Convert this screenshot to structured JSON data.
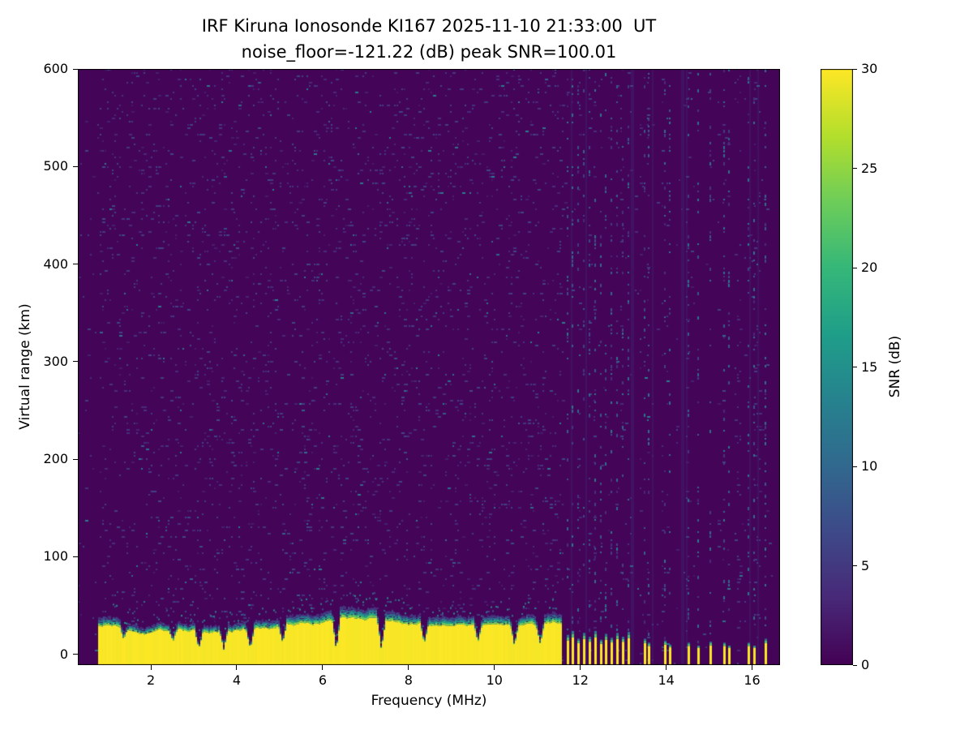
{
  "title": {
    "line1": "IRF Kiruna Ionosonde KI167 2025-11-10 21:33:00  UT",
    "line2": "noise_floor=-121.22 (dB) peak SNR=100.01"
  },
  "chart_data": {
    "type": "heatmap",
    "title": "IRF Kiruna Ionosonde KI167 2025-11-10 21:33:00  UT",
    "subtitle": "noise_floor=-121.22 (dB) peak SNR=100.01",
    "station": "IRF Kiruna Ionosonde KI167",
    "timestamp_ut": "2025-11-10 21:33:00",
    "noise_floor_db": -121.22,
    "peak_snr_db": 100.01,
    "xlabel": "Frequency (MHz)",
    "ylabel": "Virtual range (km)",
    "x_range_mhz": [
      0.3,
      16.65
    ],
    "y_range_km": [
      -11,
      600
    ],
    "x_ticks": [
      2,
      4,
      6,
      8,
      10,
      12,
      14,
      16
    ],
    "y_ticks": [
      0,
      100,
      200,
      300,
      400,
      500,
      600
    ],
    "colorbar": {
      "label": "SNR (dB)",
      "range": [
        0,
        30
      ],
      "ticks": [
        0,
        5,
        10,
        15,
        20,
        25,
        30
      ],
      "colormap": "viridis",
      "colormap_stops": [
        "#440154",
        "#482878",
        "#3e4989",
        "#31688e",
        "#26828e",
        "#1f9e89",
        "#35b779",
        "#6dcd59",
        "#b4de2c",
        "#fde725"
      ]
    },
    "background_snr_db": 0.5,
    "speckle_noise": {
      "typical_snr_db": 5,
      "max_snr_db": 13,
      "density": 0.085
    },
    "ground_echo_band": {
      "freq_start_mhz": 0.78,
      "freq_end_mhz": 11.55,
      "typical_top_km": 32,
      "snr_db": 30,
      "notches": [
        {
          "f": 1.35,
          "top_km": 20
        },
        {
          "f": 2.5,
          "top_km": 17
        },
        {
          "f": 3.1,
          "top_km": 8
        },
        {
          "f": 3.68,
          "top_km": 6
        },
        {
          "f": 4.3,
          "top_km": 8
        },
        {
          "f": 5.05,
          "top_km": 15
        },
        {
          "f": 6.3,
          "top_km": 5
        },
        {
          "f": 7.35,
          "top_km": 6
        },
        {
          "f": 8.35,
          "top_km": 14
        },
        {
          "f": 9.6,
          "top_km": 16
        },
        {
          "f": 10.45,
          "top_km": 11
        },
        {
          "f": 11.05,
          "top_km": 14
        }
      ]
    },
    "rfi_columns": [
      {
        "f": 11.68,
        "top_km": 20
      },
      {
        "f": 11.8,
        "top_km": 24
      },
      {
        "f": 11.93,
        "top_km": 16
      },
      {
        "f": 12.06,
        "top_km": 22
      },
      {
        "f": 12.19,
        "top_km": 18
      },
      {
        "f": 12.32,
        "top_km": 24
      },
      {
        "f": 12.45,
        "top_km": 15
      },
      {
        "f": 12.58,
        "top_km": 21
      },
      {
        "f": 12.71,
        "top_km": 17
      },
      {
        "f": 12.84,
        "top_km": 22
      },
      {
        "f": 12.97,
        "top_km": 18
      },
      {
        "f": 13.1,
        "top_km": 23
      },
      {
        "f": 13.47,
        "top_km": 16
      },
      {
        "f": 13.57,
        "top_km": 12
      },
      {
        "f": 13.95,
        "top_km": 14
      },
      {
        "f": 14.06,
        "top_km": 10
      },
      {
        "f": 14.5,
        "top_km": 12
      },
      {
        "f": 14.72,
        "top_km": 9
      },
      {
        "f": 15.0,
        "top_km": 13
      },
      {
        "f": 15.32,
        "top_km": 12
      },
      {
        "f": 15.45,
        "top_km": 9
      },
      {
        "f": 15.9,
        "top_km": 12
      },
      {
        "f": 16.02,
        "top_km": 9
      },
      {
        "f": 16.3,
        "top_km": 16
      }
    ]
  }
}
